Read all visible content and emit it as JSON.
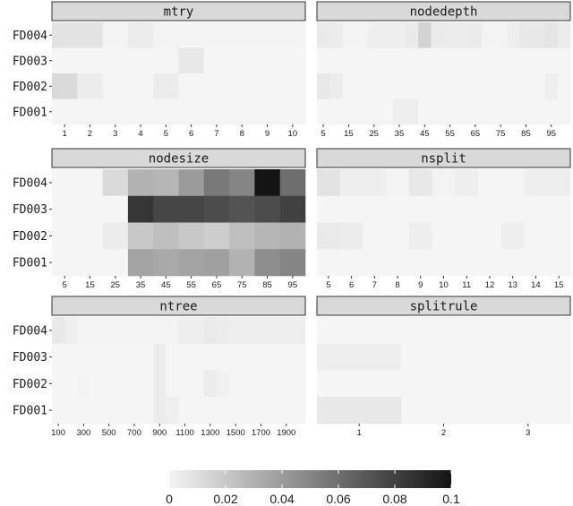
{
  "chart_data": {
    "type": "heatmap",
    "rows": [
      "FD004",
      "FD003",
      "FD002",
      "FD001"
    ],
    "color_scale": {
      "min": 0,
      "max": 0.1,
      "low_color": "#f5f5f5",
      "high_color": "#141414",
      "ticks": [
        0,
        0.02,
        0.04,
        0.06,
        0.08,
        0.1
      ],
      "tick_labels": [
        "0",
        "0.02",
        "0.04",
        "0.06",
        "0.08",
        "0.1"
      ]
    },
    "panels": [
      {
        "title": "mtry",
        "x": [
          "1",
          "2",
          "3",
          "4",
          "5",
          "6",
          "7",
          "8",
          "9",
          "10"
        ],
        "values": [
          [
            0.008,
            0.008,
            0.001,
            0.004,
            0.001,
            0.001,
            0.001,
            0.001,
            0.001,
            0.001
          ],
          [
            0,
            0,
            0,
            0,
            0,
            0.006,
            0,
            0,
            0,
            0
          ],
          [
            0.012,
            0.004,
            0,
            0,
            0.004,
            0,
            0,
            0,
            0,
            0
          ],
          [
            0,
            0,
            0,
            0,
            0,
            0,
            0,
            0,
            0,
            0
          ]
        ]
      },
      {
        "title": "nodedepth",
        "x": [
          "5",
          "10",
          "15",
          "20",
          "25",
          "30",
          "35",
          "40",
          "45",
          "50",
          "55",
          "60",
          "65",
          "70",
          "75",
          "80",
          "85",
          "90",
          "95",
          "100"
        ],
        "x_tick_labels": [
          "5",
          "15",
          "25",
          "35",
          "45",
          "55",
          "65",
          "75",
          "85",
          "95"
        ],
        "values": [
          [
            0.005,
            0.004,
            0.001,
            0.001,
            0.003,
            0.003,
            0.003,
            0.005,
            0.015,
            0.005,
            0.004,
            0.004,
            0.005,
            0.001,
            0.001,
            0.003,
            0.006,
            0.006,
            0.007,
            0.004
          ],
          [
            0,
            0,
            0,
            0,
            0,
            0,
            0,
            0,
            0,
            0,
            0,
            0,
            0,
            0,
            0,
            0,
            0,
            0,
            0,
            0
          ],
          [
            0.006,
            0.004,
            0,
            0,
            0,
            0,
            0,
            0,
            0,
            0,
            0,
            0,
            0,
            0,
            0,
            0,
            0,
            0,
            0.003,
            0
          ],
          [
            0,
            0,
            0,
            0,
            0,
            0,
            0.003,
            0.003,
            0,
            0,
            0,
            0,
            0,
            0,
            0,
            0,
            0,
            0,
            0,
            0
          ]
        ]
      },
      {
        "title": "nodesize",
        "x": [
          "5",
          "15",
          "25",
          "35",
          "45",
          "55",
          "65",
          "75",
          "85",
          "95"
        ],
        "values": [
          [
            0,
            0,
            0.012,
            0.03,
            0.028,
            0.04,
            0.055,
            0.05,
            0.1,
            0.06
          ],
          [
            0,
            0,
            0,
            0.085,
            0.078,
            0.078,
            0.075,
            0.072,
            0.075,
            0.08
          ],
          [
            0,
            0,
            0.004,
            0.02,
            0.024,
            0.02,
            0.018,
            0.024,
            0.028,
            0.03
          ],
          [
            0,
            0,
            0,
            0.036,
            0.034,
            0.036,
            0.038,
            0.03,
            0.046,
            0.05
          ]
        ]
      },
      {
        "title": "nsplit",
        "x": [
          "5",
          "6",
          "7",
          "8",
          "9",
          "10",
          "11",
          "12",
          "13",
          "14",
          "15"
        ],
        "values": [
          [
            0.008,
            0.003,
            0.003,
            0.001,
            0.006,
            0.001,
            0.003,
            0,
            0,
            0.003,
            0.003
          ],
          [
            0,
            0,
            0,
            0,
            0,
            0,
            0,
            0,
            0,
            0,
            0
          ],
          [
            0.005,
            0.004,
            0,
            0,
            0.003,
            0,
            0,
            0,
            0.003,
            0,
            0
          ],
          [
            0,
            0,
            0,
            0,
            0,
            0,
            0,
            0,
            0,
            0,
            0
          ]
        ]
      },
      {
        "title": "ntree",
        "x": [
          "100",
          "200",
          "300",
          "400",
          "500",
          "600",
          "700",
          "800",
          "900",
          "1000",
          "1100",
          "1200",
          "1300",
          "1400",
          "1500",
          "1600",
          "1700",
          "1800",
          "1900",
          "2000"
        ],
        "x_tick_labels": [
          "100",
          "300",
          "500",
          "700",
          "900",
          "1100",
          "1300",
          "1500",
          "1700",
          "1900"
        ],
        "values": [
          [
            0.006,
            0.003,
            0.001,
            0.001,
            0.001,
            0.001,
            0.001,
            0.001,
            0.001,
            0.001,
            0.003,
            0.003,
            0.005,
            0.004,
            0.003,
            0.003,
            0.003,
            0.003,
            0.003,
            0.003
          ],
          [
            0,
            0,
            0,
            0,
            0,
            0,
            0,
            0,
            0.004,
            0,
            0,
            0,
            0,
            0,
            0,
            0,
            0,
            0,
            0,
            0
          ],
          [
            0,
            0,
            0.001,
            0,
            0,
            0,
            0,
            0,
            0.004,
            0,
            0,
            0,
            0.004,
            0.002,
            0,
            0,
            0,
            0,
            0,
            0
          ],
          [
            0,
            0,
            0,
            0,
            0,
            0,
            0,
            0,
            0.004,
            0.003,
            0,
            0,
            0,
            0,
            0,
            0,
            0,
            0,
            0,
            0
          ]
        ]
      },
      {
        "title": "splitrule",
        "x": [
          "1",
          "2",
          "3"
        ],
        "values": [
          [
            0,
            0,
            0
          ],
          [
            0.003,
            0,
            0
          ],
          [
            0,
            0,
            0
          ],
          [
            0.006,
            0,
            0
          ]
        ]
      }
    ]
  }
}
